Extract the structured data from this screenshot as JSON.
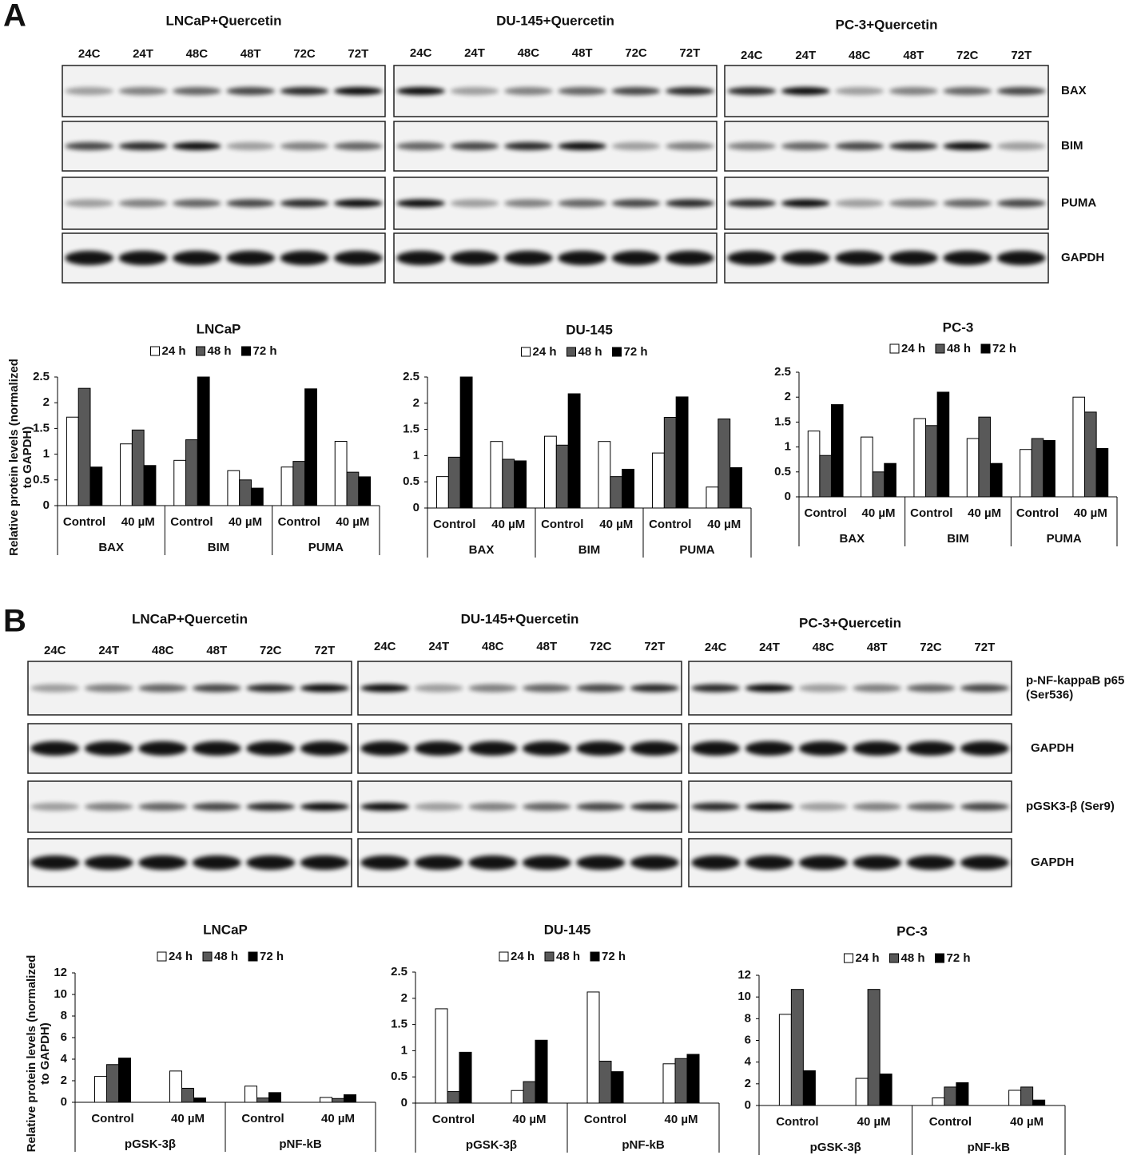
{
  "panels": [
    {
      "label": "A",
      "blots": [
        {
          "title": "LNCaP+Quercetin",
          "lanes": [
            "24C",
            "24T",
            "48C",
            "48T",
            "72C",
            "72T"
          ]
        },
        {
          "title": "DU-145+Quercetin",
          "lanes": [
            "24C",
            "24T",
            "48C",
            "48T",
            "72C",
            "72T"
          ]
        },
        {
          "title": "PC-3+Quercetin",
          "lanes": [
            "24C",
            "24T",
            "48C",
            "48T",
            "72C",
            "72T"
          ]
        }
      ],
      "rows": [
        [
          "BAX"
        ],
        [
          "BIM"
        ],
        [
          "PUMA"
        ],
        [
          "GAPDH"
        ]
      ]
    },
    {
      "label": "B",
      "blots": [
        {
          "title": "LNCaP+Quercetin",
          "lanes": [
            "24C",
            "24T",
            "48C",
            "48T",
            "72C",
            "72T"
          ]
        },
        {
          "title": "DU-145+Quercetin",
          "lanes": [
            "24C",
            "24T",
            "48C",
            "48T",
            "72C",
            "72T"
          ]
        },
        {
          "title": "PC-3+Quercetin",
          "lanes": [
            "24C",
            "24T",
            "48C",
            "48T",
            "72C",
            "72T"
          ]
        }
      ],
      "rows": [
        [
          "p-NF-kappaB p65",
          "(Ser536)"
        ],
        [
          "GAPDH"
        ],
        [
          "pGSK3-β (Ser9)"
        ],
        [
          "GAPDH"
        ]
      ]
    }
  ],
  "chart_data": [
    {
      "type": "bar",
      "title": "LNCaP",
      "ylabel": [
        "Relative protein levels (normalized",
        "to GAPDH)"
      ],
      "categories": [
        "Control",
        "40 µM",
        "Control",
        "40 µM",
        "Control",
        "40 µM"
      ],
      "groups": [
        "BAX",
        "BIM",
        "PUMA"
      ],
      "ylim": [
        0,
        2.5
      ],
      "yticks": [
        0,
        0.5,
        1,
        1.5,
        2,
        2.5
      ],
      "series": [
        {
          "name": "24 h",
          "color": "#ffffff",
          "values": [
            1.72,
            1.2,
            0.88,
            0.68,
            0.75,
            1.25
          ]
        },
        {
          "name": "48 h",
          "color": "#595959",
          "values": [
            2.28,
            1.47,
            1.28,
            0.5,
            0.86,
            0.65
          ]
        },
        {
          "name": "72 h",
          "color": "#000000",
          "values": [
            0.75,
            0.78,
            2.5,
            0.34,
            2.27,
            0.56
          ]
        }
      ]
    },
    {
      "type": "bar",
      "title": "DU-145",
      "categories": [
        "Control",
        "40 µM",
        "Control",
        "40 µM",
        "Control",
        "40 µM"
      ],
      "groups": [
        "BAX",
        "BIM",
        "PUMA"
      ],
      "ylim": [
        0,
        2.5
      ],
      "yticks": [
        0,
        0.5,
        1,
        1.5,
        2,
        2.5
      ],
      "series": [
        {
          "name": "24 h",
          "color": "#ffffff",
          "values": [
            0.6,
            1.27,
            1.37,
            1.27,
            1.05,
            0.4
          ]
        },
        {
          "name": "48 h",
          "color": "#595959",
          "values": [
            0.97,
            0.93,
            1.2,
            0.6,
            1.73,
            1.7
          ]
        },
        {
          "name": "72 h",
          "color": "#000000",
          "values": [
            2.5,
            0.9,
            2.18,
            0.74,
            2.12,
            0.77
          ]
        }
      ]
    },
    {
      "type": "bar",
      "title": "PC-3",
      "categories": [
        "Control",
        "40 µM",
        "Control",
        "40 µM",
        "Control",
        "40 µM"
      ],
      "groups": [
        "BAX",
        "BIM",
        "PUMA"
      ],
      "ylim": [
        0,
        2.5
      ],
      "yticks": [
        0,
        0.5,
        1,
        1.5,
        2,
        2.5
      ],
      "series": [
        {
          "name": "24 h",
          "color": "#ffffff",
          "values": [
            1.32,
            1.2,
            1.57,
            1.17,
            0.95,
            2.0
          ]
        },
        {
          "name": "48 h",
          "color": "#595959",
          "values": [
            0.83,
            0.5,
            1.43,
            1.6,
            1.17,
            1.7
          ]
        },
        {
          "name": "72 h",
          "color": "#000000",
          "values": [
            1.85,
            0.67,
            2.1,
            0.67,
            1.13,
            0.97
          ]
        }
      ]
    },
    {
      "type": "bar",
      "title": "LNCaP",
      "ylabel": [
        "Relative protein levels (normalized",
        "to GAPDH)"
      ],
      "categories": [
        "Control",
        "40 µM",
        "Control",
        "40 µM"
      ],
      "groups": [
        "pGSK-3β",
        "pNF-kB"
      ],
      "ylim": [
        0,
        12
      ],
      "yticks": [
        0,
        2,
        4,
        6,
        8,
        10,
        12
      ],
      "series": [
        {
          "name": "24 h",
          "color": "#ffffff",
          "values": [
            2.4,
            2.9,
            1.5,
            0.45
          ]
        },
        {
          "name": "48 h",
          "color": "#595959",
          "values": [
            3.5,
            1.3,
            0.4,
            0.35
          ]
        },
        {
          "name": "72 h",
          "color": "#000000",
          "values": [
            4.1,
            0.4,
            0.9,
            0.7
          ]
        }
      ]
    },
    {
      "type": "bar",
      "title": "DU-145",
      "categories": [
        "Control",
        "40 µM",
        "Control",
        "40 µM"
      ],
      "groups": [
        "pGSK-3β",
        "pNF-kB"
      ],
      "ylim": [
        0,
        2.5
      ],
      "yticks": [
        0,
        0.5,
        1,
        1.5,
        2,
        2.5
      ],
      "series": [
        {
          "name": "24 h",
          "color": "#ffffff",
          "values": [
            1.8,
            0.24,
            2.12,
            0.75
          ]
        },
        {
          "name": "48 h",
          "color": "#595959",
          "values": [
            0.22,
            0.41,
            0.8,
            0.85
          ]
        },
        {
          "name": "72 h",
          "color": "#000000",
          "values": [
            0.97,
            1.2,
            0.6,
            0.93
          ]
        }
      ]
    },
    {
      "type": "bar",
      "title": "PC-3",
      "categories": [
        "Control",
        "40 µM",
        "Control",
        "40 µM"
      ],
      "groups": [
        "pGSK-3β",
        "pNF-kB"
      ],
      "ylim": [
        0,
        12
      ],
      "yticks": [
        0,
        2,
        4,
        6,
        8,
        10,
        12
      ],
      "series": [
        {
          "name": "24 h",
          "color": "#ffffff",
          "values": [
            8.4,
            2.5,
            0.7,
            1.4
          ]
        },
        {
          "name": "48 h",
          "color": "#595959",
          "values": [
            10.7,
            10.7,
            1.7,
            1.7
          ]
        },
        {
          "name": "72 h",
          "color": "#000000",
          "values": [
            3.2,
            2.9,
            2.1,
            0.5
          ]
        }
      ]
    }
  ]
}
